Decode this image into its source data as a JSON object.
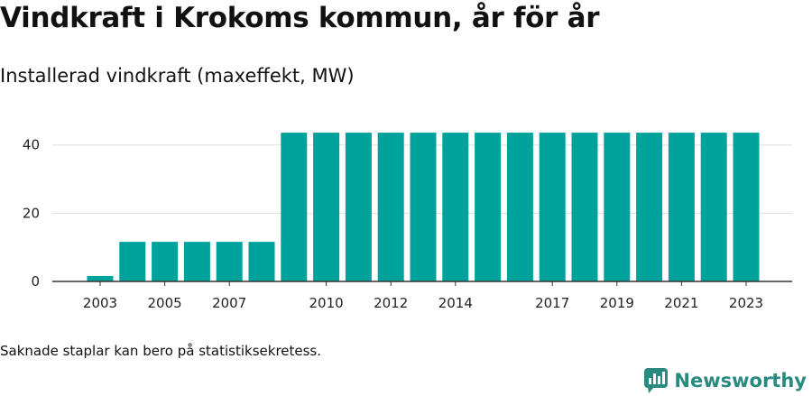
{
  "title": "Vindkraft i Krokoms kommun, år för år",
  "subtitle": "Installerad vindkraft (maxeffekt, MW)",
  "footnote": "Saknade staplar kan bero på statistiksekretess.",
  "brand": {
    "name": "Newsworthy",
    "icon": "newsworthy-logo-icon",
    "color": "#2a8a80"
  },
  "colors": {
    "bar": "#00a39b",
    "grid": "#dddddd",
    "axis": "#333333"
  },
  "chart_data": {
    "type": "bar",
    "categories": [
      2003,
      2004,
      2005,
      2006,
      2007,
      2008,
      2009,
      2010,
      2011,
      2012,
      2013,
      2014,
      2015,
      2016,
      2017,
      2018,
      2019,
      2020,
      2021,
      2022,
      2023
    ],
    "values": [
      1.6,
      11.6,
      11.6,
      11.6,
      11.6,
      11.6,
      43.6,
      43.6,
      43.6,
      43.6,
      43.6,
      43.6,
      43.6,
      43.6,
      43.6,
      43.6,
      43.6,
      43.6,
      43.6,
      43.6,
      43.6
    ],
    "x_tick_labels": [
      "2003",
      "2005",
      "2007",
      "2010",
      "2012",
      "2014",
      "2017",
      "2019",
      "2021",
      "2023"
    ],
    "y_ticks": [
      0,
      20,
      40
    ],
    "ylim": [
      0,
      46
    ],
    "grid": true,
    "xlabel": "",
    "ylabel": ""
  }
}
